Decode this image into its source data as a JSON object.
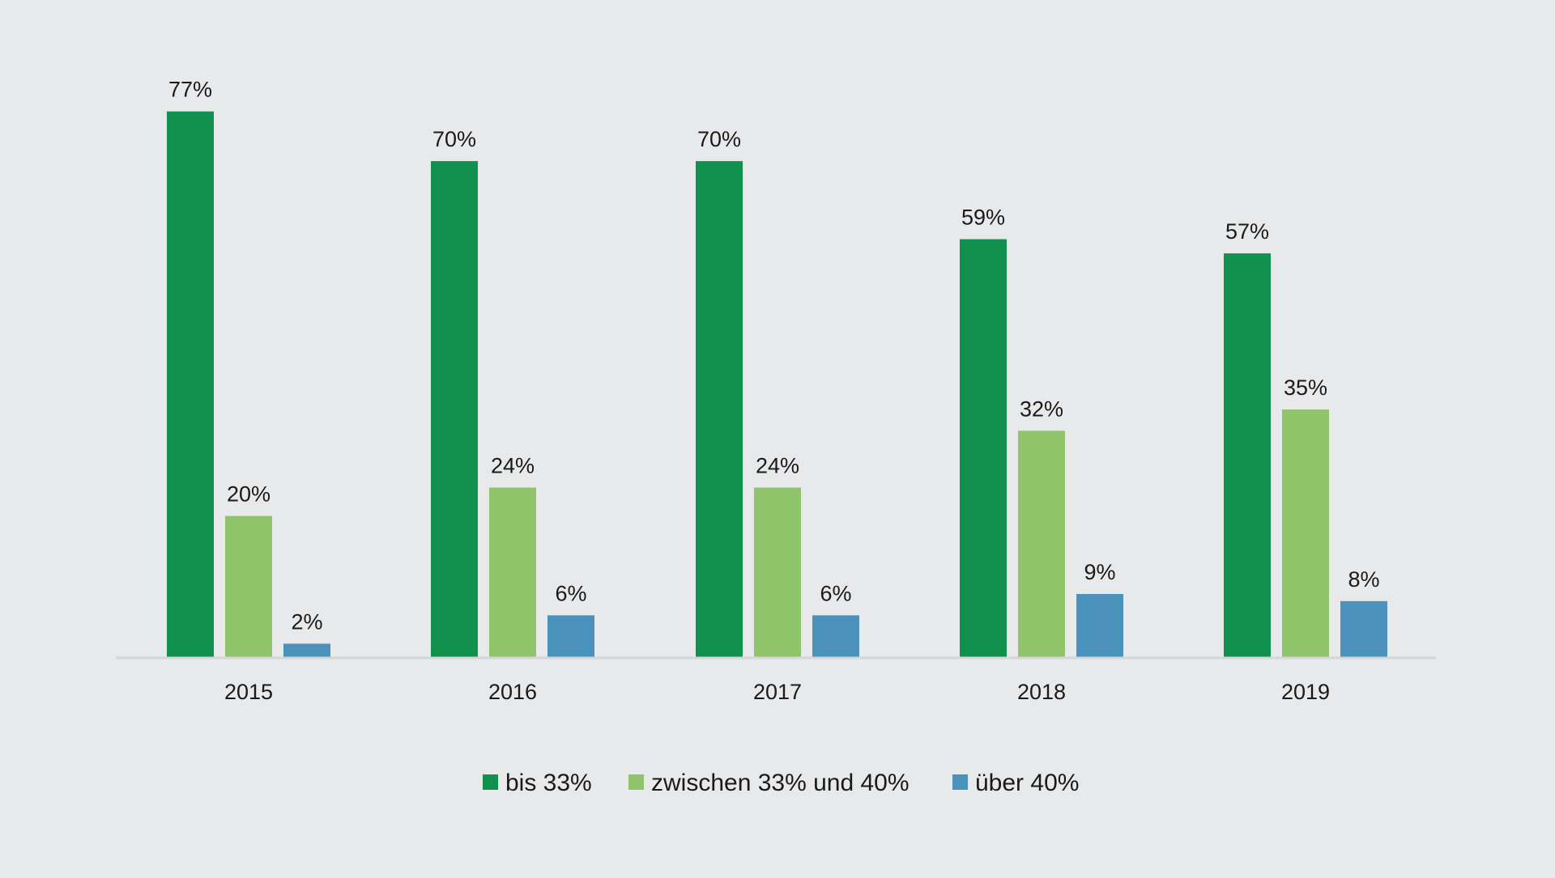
{
  "chart_data": {
    "type": "bar",
    "title": "",
    "xlabel": "",
    "ylabel": "",
    "ylim": [
      0,
      80
    ],
    "grid": false,
    "legend_position": "bottom-center",
    "categories": [
      "2015",
      "2016",
      "2017",
      "2018",
      "2019"
    ],
    "series": [
      {
        "name": "bis 33%",
        "color": "#12904d",
        "values": [
          77,
          70,
          70,
          59,
          57
        ],
        "labels": [
          "77%",
          "70%",
          "70%",
          "59%",
          "57%"
        ]
      },
      {
        "name": "zwischen 33% und 40%",
        "color": "#8fc46a",
        "values": [
          20,
          24,
          24,
          32,
          35
        ],
        "labels": [
          "20%",
          "24%",
          "24%",
          "32%",
          "35%"
        ]
      },
      {
        "name": "über 40%",
        "color": "#4a92bb",
        "values": [
          2,
          6,
          6,
          9,
          8
        ],
        "labels": [
          "2%",
          "6%",
          "6%",
          "9%",
          "8%"
        ]
      }
    ]
  },
  "colors": {
    "background": "#e8e9eb",
    "axis": "#d4d6d8",
    "text": "#1a1a1a"
  }
}
